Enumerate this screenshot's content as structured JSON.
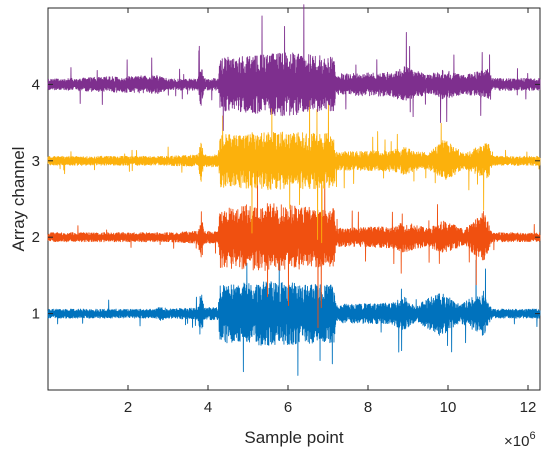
{
  "chart_data": {
    "type": "line",
    "xlabel": "Sample point",
    "ylabel": "Array channel",
    "x_exponent_base": "×10",
    "x_exponent_power": "6",
    "xlim": [
      0,
      12.3
    ],
    "ylim": [
      0,
      5
    ],
    "x_ticks": [
      2,
      4,
      6,
      8,
      10,
      12
    ],
    "y_ticks": [
      1,
      2,
      3,
      4
    ],
    "grid": false,
    "series": [
      {
        "channel": 1,
        "color": "#0072BD",
        "envelope": [
          {
            "x": 0.0,
            "amp": 0.06
          },
          {
            "x": 2.7,
            "amp": 0.06
          },
          {
            "x": 2.8,
            "amp": 0.1
          },
          {
            "x": 3.0,
            "amp": 0.06
          },
          {
            "x": 3.75,
            "amp": 0.08
          },
          {
            "x": 3.82,
            "amp": 0.38
          },
          {
            "x": 3.9,
            "amp": 0.08
          },
          {
            "x": 4.25,
            "amp": 0.08
          },
          {
            "x": 4.3,
            "amp": 0.38
          },
          {
            "x": 5.5,
            "amp": 0.42
          },
          {
            "x": 7.15,
            "amp": 0.38
          },
          {
            "x": 7.2,
            "amp": 0.12
          },
          {
            "x": 8.6,
            "amp": 0.14
          },
          {
            "x": 8.9,
            "amp": 0.22
          },
          {
            "x": 9.2,
            "amp": 0.1
          },
          {
            "x": 9.8,
            "amp": 0.3
          },
          {
            "x": 10.3,
            "amp": 0.12
          },
          {
            "x": 10.9,
            "amp": 0.3
          },
          {
            "x": 11.1,
            "amp": 0.06
          },
          {
            "x": 12.3,
            "amp": 0.06
          }
        ]
      },
      {
        "channel": 2,
        "color": "#F05010",
        "envelope": [
          {
            "x": 0.0,
            "amp": 0.06
          },
          {
            "x": 3.0,
            "amp": 0.06
          },
          {
            "x": 3.75,
            "amp": 0.08
          },
          {
            "x": 3.82,
            "amp": 0.4
          },
          {
            "x": 3.9,
            "amp": 0.08
          },
          {
            "x": 4.25,
            "amp": 0.08
          },
          {
            "x": 4.3,
            "amp": 0.4
          },
          {
            "x": 5.5,
            "amp": 0.45
          },
          {
            "x": 7.15,
            "amp": 0.38
          },
          {
            "x": 7.2,
            "amp": 0.12
          },
          {
            "x": 8.6,
            "amp": 0.14
          },
          {
            "x": 8.9,
            "amp": 0.2
          },
          {
            "x": 9.5,
            "amp": 0.12
          },
          {
            "x": 9.9,
            "amp": 0.22
          },
          {
            "x": 10.4,
            "amp": 0.1
          },
          {
            "x": 10.9,
            "amp": 0.35
          },
          {
            "x": 11.1,
            "amp": 0.06
          },
          {
            "x": 12.3,
            "amp": 0.06
          }
        ]
      },
      {
        "channel": 3,
        "color": "#FCB10C",
        "envelope": [
          {
            "x": 0.0,
            "amp": 0.06
          },
          {
            "x": 3.0,
            "amp": 0.06
          },
          {
            "x": 3.75,
            "amp": 0.08
          },
          {
            "x": 3.82,
            "amp": 0.32
          },
          {
            "x": 3.9,
            "amp": 0.08
          },
          {
            "x": 4.25,
            "amp": 0.08
          },
          {
            "x": 4.3,
            "amp": 0.35
          },
          {
            "x": 5.5,
            "amp": 0.38
          },
          {
            "x": 7.15,
            "amp": 0.36
          },
          {
            "x": 7.2,
            "amp": 0.12
          },
          {
            "x": 8.6,
            "amp": 0.14
          },
          {
            "x": 8.9,
            "amp": 0.18
          },
          {
            "x": 9.5,
            "amp": 0.1
          },
          {
            "x": 9.9,
            "amp": 0.28
          },
          {
            "x": 10.4,
            "amp": 0.1
          },
          {
            "x": 11.0,
            "amp": 0.25
          },
          {
            "x": 11.1,
            "amp": 0.06
          },
          {
            "x": 12.3,
            "amp": 0.06
          }
        ]
      },
      {
        "channel": 4,
        "color": "#7E2F8E",
        "envelope": [
          {
            "x": 0.0,
            "amp": 0.07
          },
          {
            "x": 1.5,
            "amp": 0.1
          },
          {
            "x": 2.8,
            "amp": 0.12
          },
          {
            "x": 3.0,
            "amp": 0.07
          },
          {
            "x": 3.75,
            "amp": 0.08
          },
          {
            "x": 3.82,
            "amp": 0.3
          },
          {
            "x": 3.9,
            "amp": 0.08
          },
          {
            "x": 4.25,
            "amp": 0.08
          },
          {
            "x": 4.3,
            "amp": 0.35
          },
          {
            "x": 6.0,
            "amp": 0.42
          },
          {
            "x": 7.15,
            "amp": 0.36
          },
          {
            "x": 7.2,
            "amp": 0.14
          },
          {
            "x": 8.6,
            "amp": 0.16
          },
          {
            "x": 8.9,
            "amp": 0.24
          },
          {
            "x": 9.5,
            "amp": 0.12
          },
          {
            "x": 9.9,
            "amp": 0.2
          },
          {
            "x": 10.4,
            "amp": 0.12
          },
          {
            "x": 11.0,
            "amp": 0.2
          },
          {
            "x": 11.1,
            "amp": 0.08
          },
          {
            "x": 12.3,
            "amp": 0.08
          }
        ]
      }
    ]
  }
}
